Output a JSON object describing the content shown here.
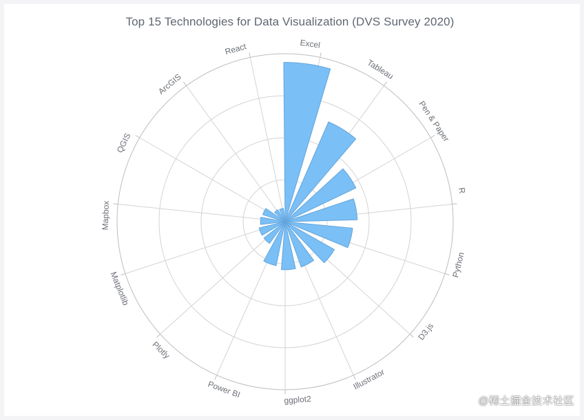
{
  "chart_data": {
    "type": "bar",
    "layout": "polar",
    "title": "Top 15 Technologies for Data Visualization (DVS Survey 2020)",
    "categories": [
      "Excel",
      "Tableau",
      "Pen & Paper",
      "R",
      "Python",
      "D3.js",
      "Illustrator",
      "ggplot2",
      "Power BI",
      "Plotly",
      "Matplotlib",
      "Mapbox",
      "QGIS",
      "ArcGIS",
      "React"
    ],
    "values": [
      1138,
      778,
      560,
      515,
      484,
      404,
      343,
      343,
      320,
      191,
      191,
      176,
      167,
      101,
      96
    ],
    "rlim": [
      0,
      1200
    ],
    "grid": true,
    "colors": {
      "bar_fill": "#7abff5",
      "bar_stroke": "#64a5dc",
      "grid": "#d3d3d3",
      "outer_ring": "#bdbdbd"
    }
  },
  "watermark": "@稀土掘金技术社区"
}
